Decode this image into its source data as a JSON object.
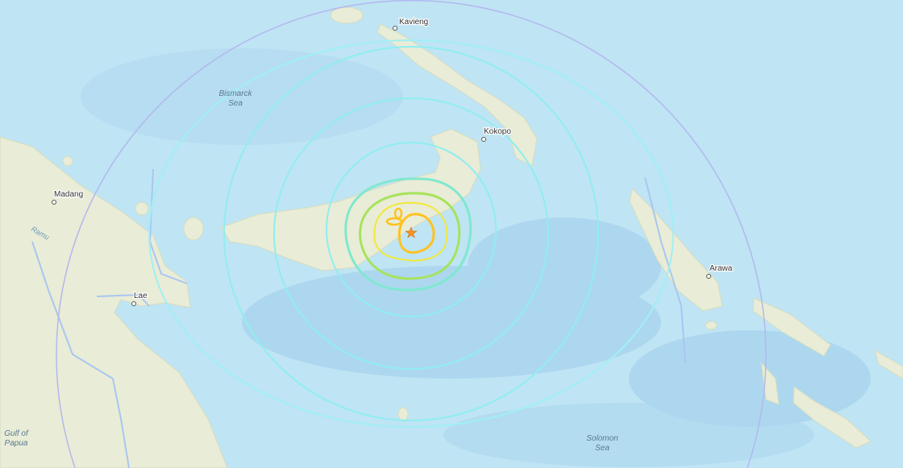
{
  "map": {
    "colors": {
      "sea": "#bfe4f4",
      "deep_sea": "#a5d2ee",
      "land": "#e9ecd6",
      "contour_outer": "#9ff0f4",
      "contour_mid": "#7fe8cf",
      "contour_green": "#a6e35c",
      "contour_yellow": "#f2e83a",
      "contour_orange": "#ffc21e",
      "epicenter": "#f7941d"
    },
    "epicenter_icon": "star-icon",
    "labels": {
      "kavieng": "Kavieng",
      "bismarck_sea_1": "Bismarck",
      "bismarck_sea_2": "Sea",
      "kokopo": "Kokopo",
      "madang": "Madang",
      "ramu": "Ramu",
      "lae": "Lae",
      "arawa": "Arawa",
      "gulf_1": "Gulf of",
      "gulf_2": "Papua",
      "solomon_1": "Solomon",
      "solomon_2": "Sea"
    }
  }
}
